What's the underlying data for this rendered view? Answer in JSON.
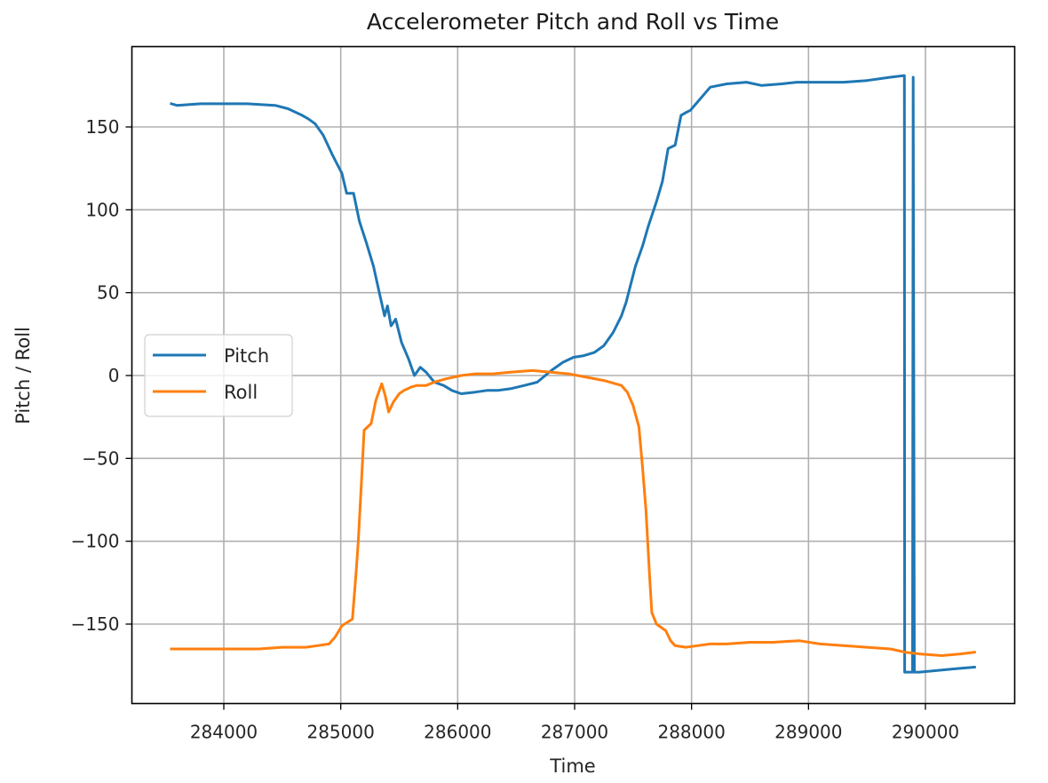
{
  "chart_data": {
    "type": "line",
    "title": "Accelerometer Pitch and Roll vs Time",
    "xlabel": "Time",
    "ylabel": "Pitch / Roll",
    "xlim": [
      283250,
      290750
    ],
    "ylim": [
      -198,
      198
    ],
    "xticks": [
      284000,
      285000,
      286000,
      287000,
      288000,
      289000,
      290000
    ],
    "yticks": [
      -150,
      -100,
      -50,
      0,
      50,
      100,
      150
    ],
    "grid": true,
    "legend_position": "center left",
    "series": [
      {
        "name": "Pitch",
        "color": "#1f77b4",
        "x": [
          283552,
          283600,
          283800,
          284000,
          284200,
          284440,
          284550,
          284670,
          284720,
          284780,
          284850,
          284930,
          285010,
          285050,
          285110,
          285160,
          285220,
          285280,
          285330,
          285375,
          285400,
          285430,
          285470,
          285520,
          285580,
          285630,
          285680,
          285730,
          285800,
          285880,
          285950,
          286030,
          286150,
          286250,
          286340,
          286450,
          286570,
          286680,
          286800,
          286900,
          286990,
          287080,
          287170,
          287250,
          287330,
          287400,
          287440,
          287480,
          287520,
          287580,
          287630,
          287700,
          287750,
          287800,
          287860,
          287910,
          287960,
          287990,
          288050,
          288160,
          288300,
          288470,
          288600,
          288770,
          288900,
          289100,
          289300,
          289500,
          289700,
          289820,
          289822,
          289890,
          289895,
          289905,
          289950,
          290100,
          290250,
          290420
        ],
        "y": [
          164,
          163,
          164,
          164,
          164,
          163,
          161,
          157,
          155,
          152,
          145,
          133,
          122,
          110,
          110,
          93,
          80,
          66,
          50,
          36,
          42,
          30,
          34,
          20,
          10,
          0,
          5,
          2,
          -4,
          -6,
          -9,
          -11,
          -10,
          -9,
          -9,
          -8,
          -6,
          -4,
          3,
          8,
          11,
          12,
          14,
          18,
          26,
          36,
          44,
          55,
          66,
          78,
          90,
          105,
          117,
          137,
          139,
          157,
          159,
          160,
          165,
          174,
          176,
          177,
          175,
          176,
          177,
          177,
          177,
          178,
          180,
          181,
          -179,
          -179,
          180,
          -179,
          -179,
          -178,
          -177,
          -176
        ]
      },
      {
        "name": "Roll",
        "color": "#ff7f0e",
        "x": [
          283552,
          283700,
          283900,
          284100,
          284300,
          284500,
          284700,
          284800,
          284900,
          284950,
          285010,
          285100,
          285130,
          285150,
          285180,
          285200,
          285230,
          285260,
          285300,
          285350,
          285380,
          285410,
          285450,
          285500,
          285540,
          285600,
          285650,
          285730,
          285800,
          285900,
          286030,
          286150,
          286300,
          286450,
          286640,
          286800,
          286950,
          287100,
          287250,
          287350,
          287400,
          287450,
          287500,
          287550,
          287580,
          287610,
          287640,
          287660,
          287700,
          287780,
          287820,
          287860,
          287950,
          288050,
          288160,
          288300,
          288500,
          288700,
          288920,
          289100,
          289300,
          289500,
          289700,
          289830,
          289950,
          290140,
          290300,
          290420
        ],
        "y": [
          -165,
          -165,
          -165,
          -165,
          -165,
          -164,
          -164,
          -163,
          -162,
          -158,
          -151,
          -147,
          -120,
          -100,
          -60,
          -33,
          -31,
          -29,
          -15,
          -5,
          -12,
          -22,
          -16,
          -11,
          -9,
          -7,
          -6,
          -6,
          -4,
          -2,
          0,
          1,
          1,
          2,
          3,
          2,
          1,
          -1,
          -3,
          -5,
          -6,
          -10,
          -18,
          -31,
          -55,
          -81,
          -120,
          -143,
          -150,
          -154,
          -160,
          -163,
          -164,
          -163,
          -162,
          -162,
          -161,
          -161,
          -160,
          -162,
          -163,
          -164,
          -165,
          -167,
          -168,
          -169,
          -168,
          -167
        ]
      }
    ]
  }
}
